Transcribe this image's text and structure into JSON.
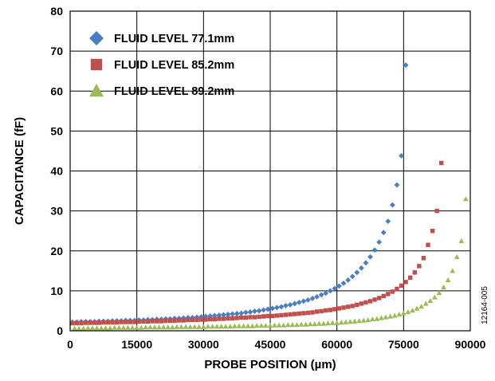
{
  "chart_data": {
    "type": "scatter",
    "xlabel": "PROBE POSITION (µm)",
    "ylabel": "CAPACITANCE (fF)",
    "xlim": [
      0,
      90000
    ],
    "ylim": [
      0,
      80
    ],
    "xticks": [
      0,
      15000,
      30000,
      45000,
      60000,
      75000,
      90000
    ],
    "yticks": [
      0,
      10,
      20,
      30,
      40,
      50,
      60,
      70,
      80
    ],
    "grid": true,
    "legend_position": "top-left",
    "figure_code": "12164-005",
    "series": [
      {
        "name": "FLUID LEVEL 77.1mm",
        "marker": "diamond",
        "color": "#4a7ebf",
        "points": [
          [
            500,
            2.2
          ],
          [
            1500,
            2.2
          ],
          [
            2500,
            2.3
          ],
          [
            3500,
            2.3
          ],
          [
            4500,
            2.3
          ],
          [
            5500,
            2.3
          ],
          [
            6500,
            2.4
          ],
          [
            7500,
            2.4
          ],
          [
            8500,
            2.4
          ],
          [
            9500,
            2.5
          ],
          [
            10500,
            2.5
          ],
          [
            11500,
            2.5
          ],
          [
            12500,
            2.6
          ],
          [
            13500,
            2.6
          ],
          [
            14500,
            2.6
          ],
          [
            15500,
            2.7
          ],
          [
            16500,
            2.7
          ],
          [
            17500,
            2.8
          ],
          [
            18500,
            2.8
          ],
          [
            19500,
            2.9
          ],
          [
            20500,
            2.9
          ],
          [
            21500,
            3.0
          ],
          [
            22500,
            3.0
          ],
          [
            23500,
            3.1
          ],
          [
            24500,
            3.1
          ],
          [
            25500,
            3.2
          ],
          [
            26500,
            3.3
          ],
          [
            27500,
            3.3
          ],
          [
            28500,
            3.4
          ],
          [
            29500,
            3.5
          ],
          [
            30500,
            3.6
          ],
          [
            31500,
            3.7
          ],
          [
            32500,
            3.8
          ],
          [
            33500,
            3.9
          ],
          [
            34500,
            4.0
          ],
          [
            35500,
            4.1
          ],
          [
            36500,
            4.2
          ],
          [
            37500,
            4.3
          ],
          [
            38500,
            4.4
          ],
          [
            39500,
            4.6
          ],
          [
            40500,
            4.7
          ],
          [
            41500,
            4.9
          ],
          [
            42500,
            5.0
          ],
          [
            43500,
            5.2
          ],
          [
            44500,
            5.4
          ],
          [
            45500,
            5.6
          ],
          [
            46500,
            5.8
          ],
          [
            47500,
            6.0
          ],
          [
            48500,
            6.3
          ],
          [
            49500,
            6.5
          ],
          [
            50500,
            6.8
          ],
          [
            51500,
            7.1
          ],
          [
            52500,
            7.4
          ],
          [
            53500,
            7.7
          ],
          [
            54500,
            8.1
          ],
          [
            55500,
            8.5
          ],
          [
            56500,
            9.0
          ],
          [
            57500,
            9.4
          ],
          [
            58500,
            10.0
          ],
          [
            59500,
            10.6
          ],
          [
            60500,
            11.2
          ],
          [
            61500,
            11.9
          ],
          [
            62500,
            12.7
          ],
          [
            63500,
            13.6
          ],
          [
            64500,
            14.6
          ],
          [
            65500,
            15.7
          ],
          [
            66500,
            17.0
          ],
          [
            67500,
            18.5
          ],
          [
            68500,
            20.2
          ],
          [
            69500,
            22.2
          ],
          [
            70500,
            24.6
          ],
          [
            71500,
            27.4
          ],
          [
            72500,
            31.5
          ],
          [
            73500,
            36.5
          ],
          [
            74500,
            43.8
          ],
          [
            75500,
            66.5
          ]
        ]
      },
      {
        "name": "FLUID LEVEL 85.2mm",
        "marker": "square",
        "color": "#c0504d",
        "points": [
          [
            500,
            1.9
          ],
          [
            1500,
            1.9
          ],
          [
            2500,
            1.9
          ],
          [
            3500,
            2.0
          ],
          [
            4500,
            2.0
          ],
          [
            5500,
            2.0
          ],
          [
            6500,
            2.0
          ],
          [
            7500,
            2.1
          ],
          [
            8500,
            2.1
          ],
          [
            9500,
            2.1
          ],
          [
            10500,
            2.1
          ],
          [
            11500,
            2.2
          ],
          [
            12500,
            2.2
          ],
          [
            13500,
            2.2
          ],
          [
            14500,
            2.2
          ],
          [
            15500,
            2.3
          ],
          [
            16500,
            2.3
          ],
          [
            17500,
            2.3
          ],
          [
            18500,
            2.4
          ],
          [
            19500,
            2.4
          ],
          [
            20500,
            2.4
          ],
          [
            21500,
            2.5
          ],
          [
            22500,
            2.5
          ],
          [
            23500,
            2.5
          ],
          [
            24500,
            2.6
          ],
          [
            25500,
            2.6
          ],
          [
            26500,
            2.7
          ],
          [
            27500,
            2.7
          ],
          [
            28500,
            2.7
          ],
          [
            29500,
            2.8
          ],
          [
            30500,
            2.8
          ],
          [
            31500,
            2.9
          ],
          [
            32500,
            2.9
          ],
          [
            33500,
            3.0
          ],
          [
            34500,
            3.0
          ],
          [
            35500,
            3.1
          ],
          [
            36500,
            3.1
          ],
          [
            37500,
            3.2
          ],
          [
            38500,
            3.3
          ],
          [
            39500,
            3.3
          ],
          [
            40500,
            3.4
          ],
          [
            41500,
            3.4
          ],
          [
            42500,
            3.5
          ],
          [
            43500,
            3.6
          ],
          [
            44500,
            3.7
          ],
          [
            45500,
            3.7
          ],
          [
            46500,
            3.8
          ],
          [
            47500,
            3.9
          ],
          [
            48500,
            4.0
          ],
          [
            49500,
            4.1
          ],
          [
            50500,
            4.2
          ],
          [
            51500,
            4.3
          ],
          [
            52500,
            4.4
          ],
          [
            53500,
            4.5
          ],
          [
            54500,
            4.6
          ],
          [
            55500,
            4.8
          ],
          [
            56500,
            4.9
          ],
          [
            57500,
            5.1
          ],
          [
            58500,
            5.2
          ],
          [
            59500,
            5.4
          ],
          [
            60500,
            5.6
          ],
          [
            61500,
            5.8
          ],
          [
            62500,
            6.0
          ],
          [
            63500,
            6.2
          ],
          [
            64500,
            6.5
          ],
          [
            65500,
            6.8
          ],
          [
            66500,
            7.1
          ],
          [
            67500,
            7.4
          ],
          [
            68500,
            7.8
          ],
          [
            69500,
            8.2
          ],
          [
            70500,
            8.7
          ],
          [
            71500,
            9.2
          ],
          [
            72500,
            9.8
          ],
          [
            73500,
            10.5
          ],
          [
            74500,
            11.3
          ],
          [
            75500,
            12.2
          ],
          [
            76500,
            13.3
          ],
          [
            77500,
            14.6
          ],
          [
            78500,
            16.2
          ],
          [
            79500,
            18.2
          ],
          [
            80500,
            21.5
          ],
          [
            81500,
            25.0
          ],
          [
            82500,
            30.0
          ],
          [
            83500,
            42.0
          ]
        ]
      },
      {
        "name": "FLUID LEVEL 89.2mm",
        "marker": "triangle",
        "color": "#9bbb59",
        "points": [
          [
            1000,
            0.6
          ],
          [
            2000,
            0.6
          ],
          [
            3000,
            0.6
          ],
          [
            4000,
            0.7
          ],
          [
            5000,
            0.7
          ],
          [
            6000,
            0.7
          ],
          [
            7000,
            0.7
          ],
          [
            8000,
            0.7
          ],
          [
            9000,
            0.7
          ],
          [
            10000,
            0.8
          ],
          [
            11000,
            0.8
          ],
          [
            12000,
            0.8
          ],
          [
            13000,
            0.8
          ],
          [
            14000,
            0.8
          ],
          [
            15000,
            0.8
          ],
          [
            16000,
            0.8
          ],
          [
            17000,
            0.9
          ],
          [
            18000,
            0.9
          ],
          [
            19000,
            0.9
          ],
          [
            20000,
            0.9
          ],
          [
            21000,
            0.9
          ],
          [
            22000,
            0.9
          ],
          [
            23000,
            0.9
          ],
          [
            24000,
            1.0
          ],
          [
            25000,
            1.0
          ],
          [
            26000,
            1.0
          ],
          [
            27000,
            1.0
          ],
          [
            28000,
            1.0
          ],
          [
            29000,
            1.0
          ],
          [
            30000,
            1.0
          ],
          [
            31000,
            1.1
          ],
          [
            32000,
            1.1
          ],
          [
            33000,
            1.1
          ],
          [
            34000,
            1.1
          ],
          [
            35000,
            1.1
          ],
          [
            36000,
            1.1
          ],
          [
            37000,
            1.2
          ],
          [
            38000,
            1.2
          ],
          [
            39000,
            1.2
          ],
          [
            40000,
            1.2
          ],
          [
            41000,
            1.2
          ],
          [
            42000,
            1.3
          ],
          [
            43000,
            1.3
          ],
          [
            44000,
            1.3
          ],
          [
            45000,
            1.3
          ],
          [
            46000,
            1.4
          ],
          [
            47000,
            1.4
          ],
          [
            48000,
            1.4
          ],
          [
            49000,
            1.5
          ],
          [
            50000,
            1.5
          ],
          [
            51000,
            1.5
          ],
          [
            52000,
            1.6
          ],
          [
            53000,
            1.6
          ],
          [
            54000,
            1.7
          ],
          [
            55000,
            1.7
          ],
          [
            56000,
            1.8
          ],
          [
            57000,
            1.8
          ],
          [
            58000,
            1.9
          ],
          [
            59000,
            2.0
          ],
          [
            60000,
            2.0
          ],
          [
            61000,
            2.1
          ],
          [
            62000,
            2.2
          ],
          [
            63000,
            2.3
          ],
          [
            64000,
            2.4
          ],
          [
            65000,
            2.5
          ],
          [
            66000,
            2.6
          ],
          [
            67000,
            2.7
          ],
          [
            68000,
            2.9
          ],
          [
            69000,
            3.0
          ],
          [
            70000,
            3.2
          ],
          [
            71000,
            3.4
          ],
          [
            72000,
            3.6
          ],
          [
            73000,
            3.8
          ],
          [
            74000,
            4.1
          ],
          [
            75000,
            4.4
          ],
          [
            76000,
            4.7
          ],
          [
            77000,
            5.1
          ],
          [
            78000,
            5.6
          ],
          [
            79000,
            6.1
          ],
          [
            80000,
            6.8
          ],
          [
            81000,
            7.5
          ],
          [
            82000,
            8.4
          ],
          [
            83000,
            9.5
          ],
          [
            84000,
            10.9
          ],
          [
            85000,
            12.7
          ],
          [
            86000,
            15.0
          ],
          [
            87000,
            18.5
          ],
          [
            88000,
            22.5
          ],
          [
            89000,
            33.0
          ]
        ]
      }
    ]
  }
}
